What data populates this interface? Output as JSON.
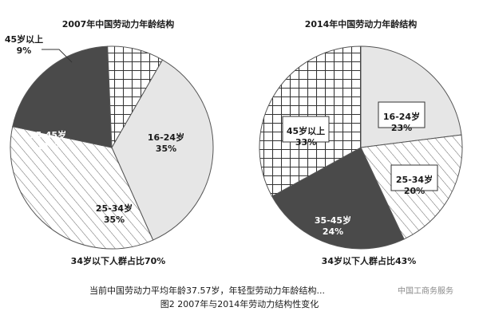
{
  "chart_data": [
    {
      "type": "pie",
      "title": "2007年中国劳动力年龄结构",
      "slices": [
        {
          "label": "16-24岁",
          "value": 35,
          "value_label": "35%",
          "fill": "light"
        },
        {
          "label": "25-34岁",
          "value": 35,
          "value_label": "35%",
          "fill": "hatch-diagonal"
        },
        {
          "label": "35-45岁",
          "value": 21,
          "value_label": "21%",
          "fill": "dark"
        },
        {
          "label": "45岁以上",
          "value": 9,
          "value_label": "9%",
          "fill": "crosshatch"
        }
      ],
      "footer": "34岁以下人群占比70%"
    },
    {
      "type": "pie",
      "title": "2014年中国劳动力年龄结构",
      "slices": [
        {
          "label": "16-24岁",
          "value": 23,
          "value_label": "23%",
          "fill": "light"
        },
        {
          "label": "25-34岁",
          "value": 20,
          "value_label": "20%",
          "fill": "hatch-diagonal"
        },
        {
          "label": "35-45岁",
          "value": 24,
          "value_label": "24%",
          "fill": "dark"
        },
        {
          "label": "45岁以上",
          "value": 33,
          "value_label": "33%",
          "fill": "crosshatch"
        }
      ],
      "footer": "34岁以下人群占比43%"
    }
  ],
  "caption": {
    "line1": "当前中国劳动力平均年龄37.57岁，年轻型劳动力年龄结构...",
    "line2": "图2 2007年与2014年劳动力结构性变化"
  },
  "watermark": "中国工商务服务",
  "colors": {
    "light": "#e6e6e6",
    "dark": "#4a4a4a",
    "hatch_line": "#666666",
    "outline": "#555555"
  }
}
